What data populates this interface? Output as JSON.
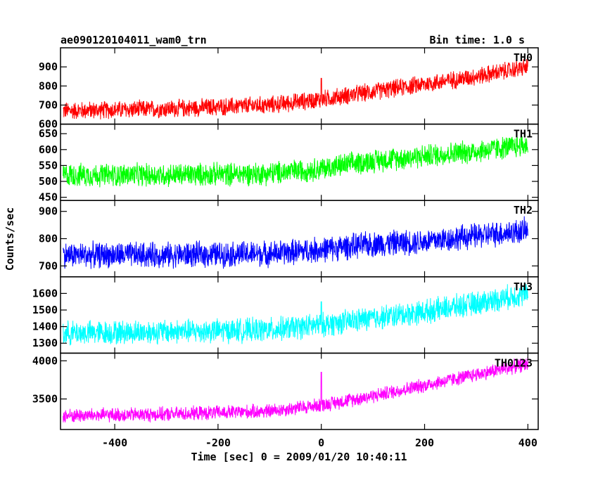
{
  "header": {
    "title": "ae090120104011_wam0_trn",
    "bin_time": "Bin time: 1.0 s"
  },
  "chart_data": {
    "type": "line",
    "ylabel": "Counts/sec",
    "xlabel": "Time [sec] 0 = 2009/01/20 10:40:11",
    "xlim": [
      -505,
      420
    ],
    "x_ticks": [
      -400,
      -200,
      0,
      200,
      400
    ],
    "x_range_data": [
      -500,
      400
    ],
    "grid": false,
    "panels": [
      {
        "name": "TH0",
        "color": "#ff0000",
        "ylim": [
          600,
          1000
        ],
        "yticks": [
          600,
          700,
          800,
          900
        ],
        "trend": {
          "x": [
            -500,
            -300,
            -100,
            0,
            100,
            200,
            300,
            400
          ],
          "y": [
            670,
            680,
            700,
            730,
            770,
            810,
            850,
            900
          ]
        },
        "noise_amplitude": 45,
        "spike": {
          "x": 0,
          "y": 840
        }
      },
      {
        "name": "TH1",
        "color": "#00ff00",
        "ylim": [
          440,
          680
        ],
        "yticks": [
          450,
          500,
          550,
          600,
          650
        ],
        "trend": {
          "x": [
            -500,
            -300,
            -100,
            0,
            100,
            200,
            300,
            400
          ],
          "y": [
            520,
            520,
            525,
            540,
            565,
            580,
            595,
            615
          ]
        },
        "noise_amplitude": 35
      },
      {
        "name": "TH2",
        "color": "#0000ff",
        "ylim": [
          660,
          940
        ],
        "yticks": [
          700,
          800,
          900
        ],
        "trend": {
          "x": [
            -500,
            -300,
            -100,
            0,
            100,
            200,
            300,
            400
          ],
          "y": [
            740,
            740,
            745,
            760,
            780,
            790,
            810,
            830
          ]
        },
        "noise_amplitude": 45
      },
      {
        "name": "TH3",
        "color": "#00ffff",
        "ylim": [
          1240,
          1700
        ],
        "yticks": [
          1300,
          1400,
          1500,
          1600
        ],
        "trend": {
          "x": [
            -500,
            -300,
            -100,
            0,
            100,
            200,
            300,
            400
          ],
          "y": [
            1360,
            1370,
            1380,
            1410,
            1450,
            1490,
            1540,
            1600
          ]
        },
        "noise_amplitude": 70,
        "spike": {
          "x": 0,
          "y": 1550
        }
      },
      {
        "name": "TH0123",
        "color": "#ff00ff",
        "ylim": [
          3100,
          4100
        ],
        "yticks": [
          3500,
          4000
        ],
        "trend": {
          "x": [
            -500,
            -300,
            -100,
            0,
            100,
            200,
            300,
            400
          ],
          "y": [
            3280,
            3300,
            3340,
            3420,
            3540,
            3680,
            3820,
            3960
          ]
        },
        "noise_amplitude": 90,
        "spike": {
          "x": 0,
          "y": 3850
        }
      }
    ]
  }
}
